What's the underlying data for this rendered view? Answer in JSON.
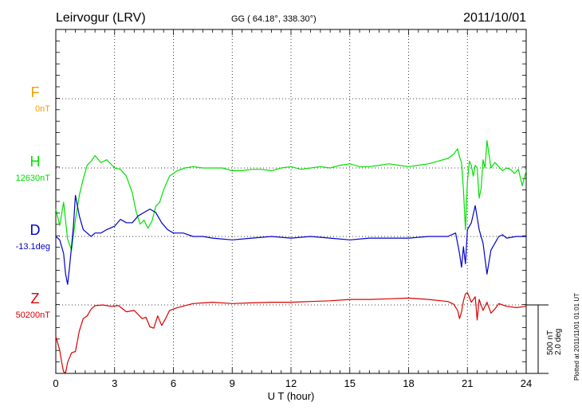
{
  "header": {
    "station": "Leirvogur (LRV)",
    "coords": "GG ( 64.18°,  338.30°)",
    "date": "2011/10/01"
  },
  "footer": {
    "xlabel": "U T (hour)",
    "plotted": "Plotted at 2011/11/01 01:01  UT"
  },
  "scale": {
    "nt": "500 nT",
    "deg": "2.0 deg"
  },
  "components": [
    {
      "key": "F",
      "letter": "F",
      "baseline": "0nT",
      "color": "#f0a000"
    },
    {
      "key": "H",
      "letter": "H",
      "baseline": "12630nT",
      "color": "#00e000"
    },
    {
      "key": "D",
      "letter": "D",
      "baseline": "-13.1deg",
      "color": "#0000cc"
    },
    {
      "key": "Z",
      "letter": "Z",
      "baseline": "50200nT",
      "color": "#dd0000"
    }
  ],
  "chart_data": {
    "type": "line",
    "xlabel": "U T (hour)",
    "xlim": [
      0,
      24
    ],
    "x_ticks": [
      0,
      3,
      6,
      9,
      12,
      15,
      18,
      21,
      24
    ],
    "grid": true,
    "series": [
      {
        "name": "H",
        "color": "#00e000",
        "x": [
          0,
          0.2,
          0.4,
          0.6,
          0.8,
          1.0,
          1.2,
          1.4,
          1.6,
          1.8,
          2.0,
          2.3,
          2.6,
          3.0,
          3.3,
          3.6,
          3.9,
          4.1,
          4.3,
          4.5,
          4.7,
          4.9,
          5.1,
          5.3,
          5.5,
          5.8,
          6.2,
          6.6,
          7.0,
          7.5,
          8.0,
          8.5,
          9.0,
          9.5,
          10.0,
          10.5,
          11.0,
          11.5,
          12.0,
          12.5,
          13.0,
          13.5,
          14.0,
          14.5,
          15.0,
          15.5,
          16.0,
          16.5,
          17.0,
          17.5,
          18.0,
          18.5,
          19.0,
          19.5,
          20.0,
          20.3,
          20.5,
          20.6,
          20.7,
          20.8,
          20.9,
          21.0,
          21.1,
          21.2,
          21.3,
          21.4,
          21.5,
          21.6,
          21.7,
          21.8,
          21.9,
          22.0,
          22.2,
          22.4,
          22.6,
          22.8,
          23.0,
          23.2,
          23.4,
          23.6,
          23.8,
          24.0
        ],
        "y": [
          -300,
          -420,
          -250,
          -520,
          -600,
          -380,
          -200,
          -80,
          20,
          50,
          90,
          40,
          60,
          0,
          -10,
          -60,
          -180,
          -320,
          -410,
          -380,
          -440,
          -390,
          -280,
          -250,
          -160,
          -60,
          -20,
          0,
          10,
          0,
          0,
          0,
          -20,
          -20,
          -10,
          -10,
          -20,
          0,
          10,
          -10,
          0,
          10,
          0,
          20,
          30,
          10,
          10,
          20,
          30,
          20,
          10,
          20,
          30,
          50,
          70,
          100,
          140,
          80,
          40,
          -160,
          -450,
          -100,
          50,
          20,
          -60,
          20,
          0,
          -220,
          -150,
          60,
          0,
          200,
          0,
          40,
          10,
          -20,
          0,
          -10,
          -40,
          -10,
          -130,
          -20
        ]
      },
      {
        "name": "D",
        "color": "#0000cc",
        "x": [
          0,
          0.2,
          0.4,
          0.5,
          0.6,
          0.7,
          0.8,
          0.9,
          1.0,
          1.2,
          1.4,
          1.6,
          1.8,
          2.0,
          2.3,
          2.6,
          3.0,
          3.3,
          3.6,
          3.9,
          4.2,
          4.5,
          4.8,
          5.1,
          5.4,
          5.7,
          6.0,
          6.5,
          7.0,
          7.5,
          8.0,
          9.0,
          10.0,
          11.0,
          12.0,
          13.0,
          14.0,
          15.0,
          16.0,
          17.0,
          18.0,
          19.0,
          20.0,
          20.4,
          20.6,
          20.7,
          20.8,
          20.9,
          21.0,
          21.2,
          21.4,
          21.6,
          21.8,
          22.0,
          22.2,
          22.4,
          22.6,
          22.8,
          23.0,
          23.5,
          24.0
        ],
        "y": [
          0.0,
          -0.1,
          -0.5,
          -1.1,
          -1.4,
          -0.9,
          -0.3,
          0.3,
          1.2,
          0.6,
          0.2,
          0.1,
          0.0,
          0.1,
          0.1,
          0.2,
          0.3,
          0.5,
          0.4,
          0.4,
          0.6,
          0.7,
          0.8,
          0.7,
          0.4,
          0.2,
          0.1,
          0.1,
          0.0,
          0.0,
          -0.05,
          -0.1,
          -0.05,
          0.0,
          -0.05,
          0.0,
          -0.05,
          -0.1,
          -0.05,
          -0.05,
          -0.05,
          0.0,
          0.0,
          0.1,
          -0.5,
          -0.9,
          -0.3,
          -0.8,
          0.2,
          0.4,
          0.9,
          0.2,
          -0.2,
          -1.1,
          -0.4,
          -0.2,
          0.0,
          0.05,
          -0.05,
          0.0,
          0.0
        ]
      },
      {
        "name": "Z",
        "color": "#dd0000",
        "x": [
          0,
          0.2,
          0.3,
          0.4,
          0.5,
          0.6,
          0.8,
          1.0,
          1.2,
          1.4,
          1.6,
          1.8,
          2.0,
          2.4,
          2.8,
          3.2,
          3.6,
          4.0,
          4.2,
          4.4,
          4.6,
          4.8,
          5.0,
          5.2,
          5.4,
          5.6,
          5.8,
          6.2,
          6.6,
          7.0,
          8.0,
          9.0,
          10.0,
          11.0,
          12.0,
          13.0,
          14.0,
          15.0,
          16.0,
          17.0,
          18.0,
          19.0,
          20.0,
          20.3,
          20.5,
          20.6,
          20.7,
          20.8,
          20.9,
          21.0,
          21.2,
          21.4,
          21.5,
          21.6,
          21.8,
          22.0,
          22.2,
          22.4,
          22.6,
          22.8,
          23.0,
          23.5,
          24.0
        ],
        "y": [
          -230,
          -330,
          -420,
          -490,
          -520,
          -420,
          -350,
          -340,
          -190,
          -100,
          -80,
          -30,
          -5,
          0,
          -10,
          -5,
          -50,
          -40,
          -70,
          -100,
          -90,
          -160,
          -170,
          -80,
          -150,
          -100,
          -40,
          -20,
          -5,
          10,
          20,
          10,
          15,
          20,
          20,
          25,
          30,
          40,
          40,
          45,
          50,
          40,
          25,
          5,
          -40,
          -100,
          -50,
          30,
          80,
          90,
          20,
          60,
          -110,
          40,
          -40,
          20,
          -60,
          -30,
          10,
          0,
          -10,
          -20,
          -10
        ]
      }
    ],
    "y_unit_note": "H and Z in nT relative to baseline; D in degrees relative to baseline"
  }
}
